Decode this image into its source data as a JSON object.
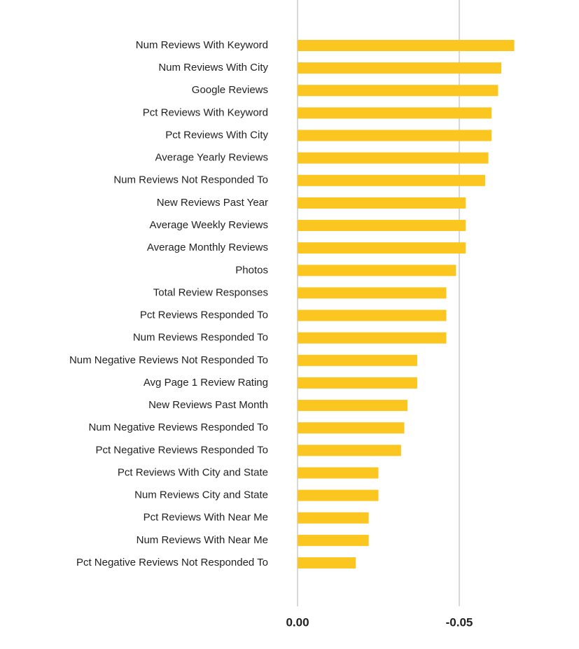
{
  "chart_data": {
    "type": "barh",
    "categories": [
      "Num Reviews With Keyword",
      "Num Reviews With City",
      "Google Reviews",
      "Pct Reviews With Keyword",
      "Pct Reviews With City",
      "Average Yearly Reviews",
      "Num Reviews Not Responded To",
      "New Reviews Past Year",
      "Average Weekly Reviews",
      "Average Monthly Reviews",
      "Photos",
      "Total Review Responses",
      "Pct Reviews Responded To",
      "Num Reviews Responded To",
      "Num Negative Reviews Not Responded To",
      "Avg Page 1 Review Rating",
      "New Reviews Past Month",
      "Num Negative Reviews Responded To",
      "Pct Negative Reviews Responded To",
      "Pct Reviews With City and State",
      "Num Reviews City and State",
      "Pct Reviews With Near Me",
      "Num Reviews With Near Me",
      "Pct Negative Reviews Not Responded To"
    ],
    "values": [
      -0.067,
      -0.063,
      -0.062,
      -0.06,
      -0.06,
      -0.059,
      -0.058,
      -0.052,
      -0.052,
      -0.052,
      -0.049,
      -0.046,
      -0.046,
      -0.046,
      -0.037,
      -0.037,
      -0.034,
      -0.033,
      -0.032,
      -0.025,
      -0.025,
      -0.022,
      -0.022,
      -0.018
    ],
    "color": "#fbc620",
    "xlim": [
      0,
      -0.075
    ],
    "xticks": [
      {
        "value": 0,
        "label": "0.00"
      },
      -0.05
    ],
    "grid": true
  }
}
